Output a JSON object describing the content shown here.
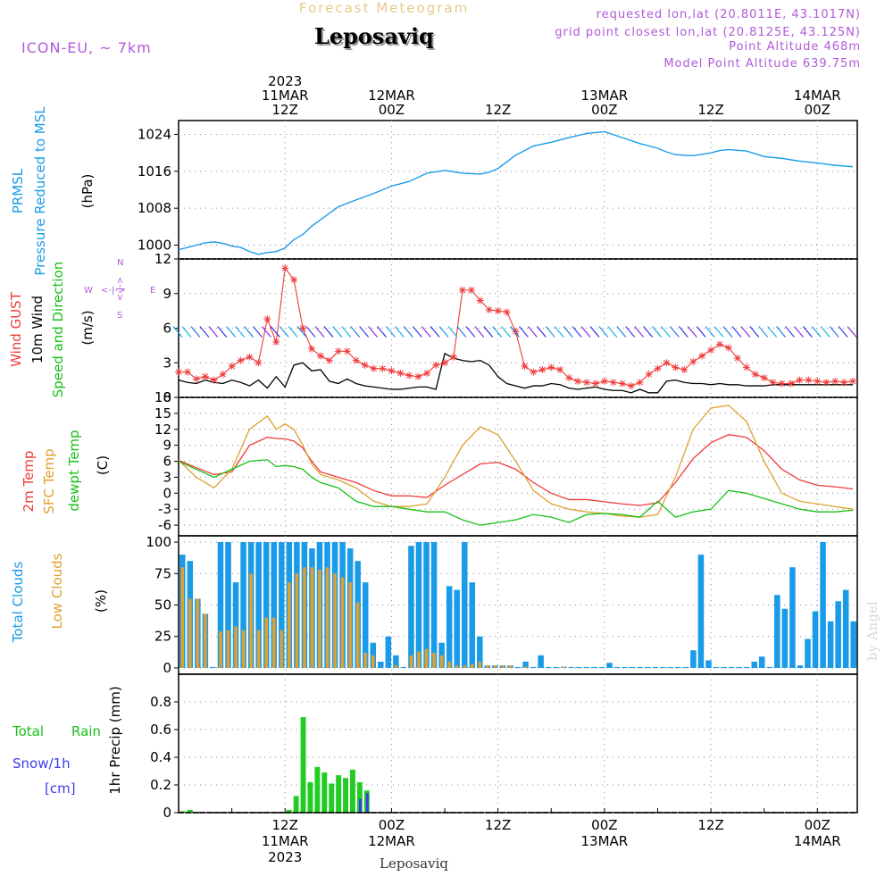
{
  "header": {
    "title": "Forecast Meteogram",
    "location": "Leposaviq",
    "model": "ICON-EU, ~ 7km",
    "requested": "requested lon,lat (20.8011E, 43.1017N)",
    "gridpoint": "grid point closest lon,lat (20.8125E, 43.125N)",
    "point_altitude": "Point Altitude 468m",
    "model_altitude": "Model Point Altitude 639.75m",
    "footer": "Leposaviq",
    "watermark": "by Angel"
  },
  "colors": {
    "pressure": "#1a9be8",
    "gust": "#ef3b3b",
    "wind": "#000000",
    "t2m": "#ef3b3b",
    "sfc": "#e0a030",
    "dewpt": "#18c018",
    "total_clouds": "#1a9be8",
    "low_clouds": "#e0a030",
    "rain": "#22cc22",
    "snow": "#3b3bef",
    "label_green": "#18c018",
    "label_purple": "#b05ad8"
  },
  "time_axis": {
    "top_labels": [
      {
        "t": 12,
        "lines": [
          "2023",
          "11MAR",
          "12Z"
        ]
      },
      {
        "t": 24,
        "lines": [
          "12MAR",
          "00Z"
        ]
      },
      {
        "t": 36,
        "lines": [
          "12Z"
        ]
      },
      {
        "t": 48,
        "lines": [
          "13MAR",
          "00Z"
        ]
      },
      {
        "t": 60,
        "lines": [
          "12Z"
        ]
      },
      {
        "t": 72,
        "lines": [
          "14MAR",
          "00Z"
        ]
      }
    ],
    "bottom_labels": [
      {
        "t": 12,
        "lines": [
          "12Z",
          "11MAR",
          "2023"
        ]
      },
      {
        "t": 24,
        "lines": [
          "00Z",
          "12MAR"
        ]
      },
      {
        "t": 36,
        "lines": [
          "12Z"
        ]
      },
      {
        "t": 48,
        "lines": [
          "00Z",
          "13MAR"
        ]
      },
      {
        "t": 60,
        "lines": [
          "12Z"
        ]
      },
      {
        "t": 72,
        "lines": [
          "00Z",
          "14MAR"
        ]
      }
    ],
    "range_hours": [
      0,
      76.5
    ]
  },
  "panel_labels": {
    "pressure": {
      "a": "PRMSL",
      "b": "Pressure Reduced to MSL",
      "unit": "(hPa)"
    },
    "wind": {
      "a": "Wind GUST",
      "b": "10m Wind",
      "c": "Speed and Direction",
      "unit": "(m/s)",
      "compass_n": "N",
      "compass_s": "S",
      "compass_w": "W",
      "compass_e": "E",
      "compass_ns": "<-|->",
      "compass_we": "<-|->"
    },
    "temp": {
      "a": "2m Temp",
      "b": "SFC Temp",
      "c": "dewpt Temp",
      "unit": "(C)"
    },
    "clouds": {
      "a": "Total Clouds",
      "b": "Low Clouds",
      "unit": "(%)"
    },
    "precip": {
      "a": "Total",
      "a2": "Rain",
      "b": "Snow/1h",
      "c": "[cm]",
      "unit": "1hr Precip (mm)"
    }
  },
  "chart_data": [
    {
      "type": "line",
      "title": "Pressure Reduced to MSL",
      "ylabel": "PRMSL (hPa)",
      "ylim": [
        997,
        1027
      ],
      "yticks": [
        "1000",
        "1008",
        "1016",
        "1024"
      ],
      "x_hours": [
        0,
        2,
        3,
        4,
        5,
        6,
        7,
        8,
        9,
        10,
        11,
        12,
        13,
        14,
        15,
        16,
        18,
        20,
        22,
        24,
        26,
        28,
        30,
        32,
        34,
        35,
        36,
        38,
        40,
        42,
        44,
        46,
        48,
        50,
        52,
        54,
        55,
        56,
        58,
        60,
        61,
        62,
        64,
        66,
        68,
        70,
        72,
        74,
        76
      ],
      "values": [
        999,
        1000,
        1000.5,
        1000.7,
        1000.4,
        999.8,
        999.5,
        998.6,
        998,
        998.4,
        998.6,
        999.4,
        1001.2,
        1002.3,
        1004.1,
        1005.5,
        1008.3,
        1009.8,
        1011.2,
        1012.8,
        1013.8,
        1015.6,
        1016.2,
        1015.6,
        1015.4,
        1015.8,
        1016.6,
        1019.5,
        1021.5,
        1022.3,
        1023.3,
        1024.2,
        1024.6,
        1023.3,
        1022,
        1021,
        1020.2,
        1019.6,
        1019.4,
        1020,
        1020.5,
        1020.7,
        1020.4,
        1019.2,
        1018.8,
        1018.2,
        1017.8,
        1017.3,
        1017
      ]
    },
    {
      "type": "line",
      "title": "Wind GUST / 10m Wind Speed and Direction",
      "ylabel": "(m/s)",
      "ylim": [
        0,
        12
      ],
      "yticks": [
        "0",
        "3",
        "6",
        "9",
        "12"
      ],
      "x_hours": [
        0,
        1,
        2,
        3,
        4,
        5,
        6,
        7,
        8,
        9,
        10,
        11,
        12,
        13,
        14,
        15,
        16,
        17,
        18,
        19,
        20,
        21,
        22,
        23,
        24,
        25,
        26,
        27,
        28,
        29,
        30,
        31,
        32,
        33,
        34,
        35,
        36,
        37,
        38,
        39,
        40,
        41,
        42,
        43,
        44,
        45,
        46,
        47,
        48,
        49,
        50,
        51,
        52,
        53,
        54,
        55,
        56,
        57,
        58,
        59,
        60,
        61,
        62,
        63,
        64,
        65,
        66,
        67,
        68,
        69,
        70,
        71,
        72,
        73,
        74,
        75,
        76
      ],
      "series": [
        {
          "name": "Wind GUST",
          "values": [
            2.2,
            2.2,
            1.6,
            1.8,
            1.5,
            2,
            2.7,
            3.2,
            3.5,
            3,
            6.8,
            4.8,
            11.2,
            10.2,
            6,
            4.2,
            3.6,
            3.2,
            4,
            4,
            3.2,
            2.8,
            2.5,
            2.5,
            2.3,
            2.1,
            1.9,
            1.8,
            2.1,
            2.8,
            3,
            3.5,
            9.3,
            9.3,
            8.4,
            7.6,
            7.5,
            7.4,
            5.7,
            2.7,
            2.2,
            2.4,
            2.6,
            2.4,
            1.7,
            1.4,
            1.3,
            1.2,
            1.4,
            1.3,
            1.2,
            1,
            1.3,
            2,
            2.5,
            3,
            2.6,
            2.4,
            3.1,
            3.6,
            4.1,
            4.6,
            4.3,
            3.4,
            2.6,
            2,
            1.7,
            1.3,
            1.2,
            1.2,
            1.5,
            1.5,
            1.4,
            1.3,
            1.4,
            1.3,
            1.4
          ]
        },
        {
          "name": "10m Wind",
          "values": [
            1.5,
            1.3,
            1.2,
            1.5,
            1.3,
            1.2,
            1.5,
            1.3,
            1,
            1.5,
            0.8,
            1.8,
            0.9,
            2.8,
            3.0,
            2.3,
            2.4,
            1.4,
            1.2,
            1.6,
            1.2,
            1,
            0.9,
            0.8,
            0.7,
            0.7,
            0.8,
            0.9,
            0.9,
            0.7,
            3.8,
            3.4,
            3.2,
            3.1,
            3.2,
            2.8,
            1.8,
            1.2,
            1.0,
            0.8,
            1.0,
            1.0,
            1.2,
            1.1,
            0.8,
            0.7,
            0.8,
            0.9,
            0.7,
            0.6,
            0.6,
            0.4,
            0.7,
            0.4,
            0.4,
            1.4,
            1.5,
            1.3,
            1.2,
            1.2,
            1.1,
            1.2,
            1.1,
            1.1,
            1.0,
            1.0,
            1.0,
            1.1,
            1.1,
            1.1,
            1.1,
            1.1,
            1.1,
            1.1,
            1.1,
            1.1,
            1.1
          ]
        }
      ]
    },
    {
      "type": "line",
      "title": "2m Temp / SFC Temp / dewpt Temp",
      "ylabel": "(C)",
      "ylim": [
        -8,
        18
      ],
      "yticks": [
        "-6",
        "-3",
        "0",
        "3",
        "6",
        "9",
        "12",
        "15",
        "18"
      ],
      "x_hours": [
        0,
        2,
        4,
        6,
        8,
        10,
        11,
        12,
        13,
        14,
        15,
        16,
        18,
        20,
        22,
        24,
        26,
        28,
        30,
        32,
        34,
        36,
        38,
        40,
        42,
        44,
        46,
        48,
        50,
        52,
        54,
        56,
        58,
        60,
        62,
        64,
        66,
        68,
        70,
        72,
        74,
        76
      ],
      "series": [
        {
          "name": "2m Temp",
          "values": [
            6.2,
            4.8,
            3.5,
            4.0,
            9.0,
            10.5,
            10.3,
            10.2,
            9.8,
            8.5,
            6.0,
            4.0,
            3.0,
            2.0,
            0.5,
            -0.5,
            -0.5,
            -0.8,
            1.5,
            3.5,
            5.5,
            5.8,
            4.5,
            2.0,
            0.0,
            -1.2,
            -1.2,
            -1.6,
            -2.0,
            -2.3,
            -1.8,
            2.0,
            6.5,
            9.5,
            11.0,
            10.5,
            8.0,
            4.5,
            2.5,
            1.5,
            1.2,
            0.8
          ]
        },
        {
          "name": "SFC Temp",
          "values": [
            6.2,
            3.0,
            1.0,
            4.5,
            12.0,
            14.5,
            12.0,
            13.0,
            12.0,
            9.0,
            5.5,
            3.5,
            2.5,
            1.0,
            -1.5,
            -2.5,
            -2.5,
            -2.0,
            3.0,
            9.0,
            12.5,
            11.0,
            6.0,
            0.5,
            -2.0,
            -3.0,
            -3.5,
            -3.8,
            -4.3,
            -4.5,
            -4.0,
            3.0,
            12.0,
            16.0,
            16.5,
            13.5,
            6.0,
            0.0,
            -1.5,
            -2.0,
            -2.5,
            -3.0
          ]
        },
        {
          "name": "dewpt Temp",
          "values": [
            6.0,
            4.5,
            3.0,
            4.5,
            6.0,
            6.3,
            5.0,
            5.2,
            5.0,
            4.5,
            3.0,
            2.0,
            1.0,
            -1.5,
            -2.5,
            -2.5,
            -3.0,
            -3.5,
            -3.5,
            -5.0,
            -6.0,
            -5.5,
            -5.0,
            -4.0,
            -4.5,
            -5.5,
            -4.0,
            -3.8,
            -4.0,
            -4.5,
            -1.5,
            -4.5,
            -3.5,
            -3.0,
            0.5,
            0.0,
            -1.0,
            -2.0,
            -3.0,
            -3.5,
            -3.5,
            -3.2
          ]
        }
      ]
    },
    {
      "type": "bar",
      "title": "Total Clouds / Low Clouds",
      "ylabel": "(%)",
      "ylim": [
        -5,
        105
      ],
      "yticks": [
        "0",
        "25",
        "50",
        "75",
        "100"
      ],
      "series": [
        {
          "name": "Total Clouds",
          "values": [
            90,
            85,
            55,
            43,
            0,
            100,
            100,
            68,
            100,
            100,
            100,
            100,
            100,
            100,
            100,
            100,
            100,
            95,
            100,
            100,
            100,
            100,
            95,
            85,
            68,
            20,
            5,
            25,
            10,
            0,
            97,
            100,
            100,
            100,
            20,
            65,
            62,
            100,
            68,
            25,
            2,
            2,
            2,
            2,
            0,
            5,
            0,
            10,
            0,
            0,
            1,
            0,
            0,
            0,
            0,
            0,
            4,
            0,
            0,
            0,
            0,
            0,
            0,
            0,
            0,
            0,
            0,
            14,
            90,
            6,
            0,
            0,
            0,
            0,
            0,
            5,
            9,
            0,
            58,
            47,
            80,
            2,
            23,
            45,
            100,
            37,
            53,
            62,
            37
          ]
        },
        {
          "name": "Low Clouds",
          "values": [
            80,
            55,
            55,
            43,
            0,
            29,
            30,
            33,
            30,
            75,
            30,
            40,
            40,
            30,
            68,
            75,
            80,
            80,
            78,
            80,
            75,
            72,
            68,
            52,
            12,
            10,
            0,
            0,
            2,
            0,
            10,
            13,
            15,
            12,
            10,
            5,
            2,
            2,
            3,
            5,
            2,
            2,
            2,
            2,
            0,
            1,
            0,
            0,
            0,
            0,
            1,
            0,
            0,
            0,
            0,
            0,
            0,
            0,
            0,
            0,
            0,
            0,
            0,
            0,
            0,
            0,
            0,
            0,
            0,
            0,
            0,
            0,
            0,
            0,
            0,
            0,
            0,
            0,
            0,
            0,
            0,
            0,
            0,
            0,
            0,
            0,
            0,
            0,
            0
          ]
        }
      ]
    },
    {
      "type": "bar",
      "title": "1hr Precip",
      "ylabel": "1hr Precip (mm)",
      "ylim": [
        0,
        1.0
      ],
      "yticks": [
        "0",
        "0.2",
        "0.4",
        "0.6",
        "0.8"
      ],
      "series": [
        {
          "name": "Total Rain",
          "values": [
            0.01,
            0.02,
            0,
            0,
            0,
            0,
            0,
            0,
            0,
            0,
            0,
            0,
            0,
            0,
            0,
            0.02,
            0.12,
            0.69,
            0.22,
            0.33,
            0.29,
            0.21,
            0.27,
            0.25,
            0.31,
            0.22,
            0.16
          ]
        },
        {
          "name": "Snow/1h",
          "values": [
            0,
            0,
            0,
            0,
            0,
            0,
            0,
            0,
            0,
            0,
            0,
            0,
            0,
            0,
            0,
            0,
            0,
            0,
            0,
            0,
            0,
            0,
            0,
            0,
            0,
            0.1,
            0.14
          ]
        }
      ]
    }
  ]
}
